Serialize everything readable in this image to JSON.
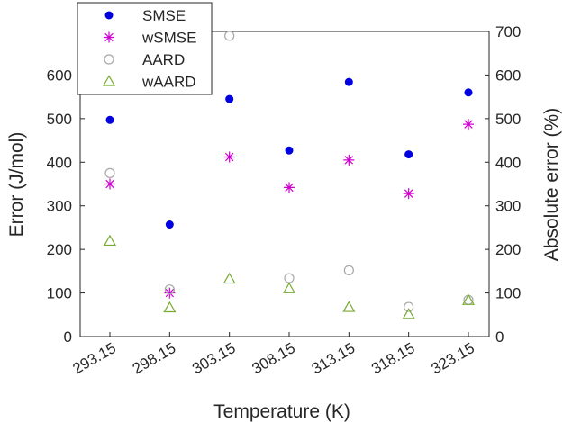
{
  "chart_data": {
    "type": "scatter",
    "categories": [
      "293.15",
      "298.15",
      "303.15",
      "308.15",
      "313.15",
      "318.15",
      "323.15"
    ],
    "xlabel": "Temperature (K)",
    "ylabel": "Error (J/mol)",
    "y2label": "Absolute error (%)",
    "ylim": [
      0,
      700
    ],
    "y2lim": [
      0,
      700
    ],
    "yticks": [
      0,
      100,
      200,
      300,
      400,
      500,
      600
    ],
    "y2ticks": [
      0,
      100,
      200,
      300,
      400,
      500,
      600,
      700
    ],
    "legend_position": "top-left",
    "grid": false,
    "series": [
      {
        "name": "SMSE",
        "axis": "left",
        "marker": "filled-circle",
        "color": "#0000e0",
        "values": [
          497,
          257,
          545,
          427,
          584,
          418,
          560
        ]
      },
      {
        "name": "wSMSE",
        "axis": "left",
        "marker": "asterisk",
        "color": "#d000d0",
        "values": [
          350,
          100,
          412,
          342,
          405,
          328,
          487
        ]
      },
      {
        "name": "AARD",
        "axis": "right",
        "marker": "open-circle",
        "color": "#a8a8a8",
        "values": [
          375,
          108,
          690,
          134,
          152,
          68,
          84
        ]
      },
      {
        "name": "wAARD",
        "axis": "right",
        "marker": "open-triangle",
        "color": "#77ac30",
        "values": [
          219,
          66,
          132,
          110,
          67,
          51,
          83
        ]
      }
    ]
  }
}
